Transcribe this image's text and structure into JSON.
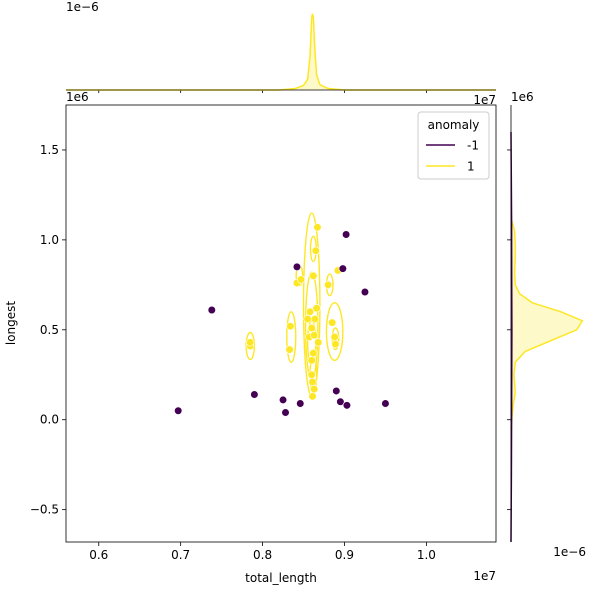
{
  "chart_data": {
    "type": "scatter",
    "subtype": "jointplot-kde",
    "xlabel": "total_length",
    "ylabel": "longest",
    "x_offset_label": "1e7",
    "y_offset_label": "1e6",
    "top_margin_offset_label": "1e−6",
    "right_margin_offset_label": "1e−6",
    "xlim": [
      5.6,
      10.85
    ],
    "ylim": [
      -0.68,
      1.75
    ],
    "x_unit_scale": 10000000,
    "y_unit_scale": 1000000,
    "x_ticks": [
      6.0,
      7.0,
      8.0,
      9.0,
      10.0
    ],
    "x_tick_labels": [
      "0.6",
      "0.7",
      "0.8",
      "0.9",
      "1.0"
    ],
    "y_ticks": [
      -0.5,
      0.0,
      0.5,
      1.0,
      1.5
    ],
    "y_tick_labels": [
      "−0.5",
      "0.0",
      "0.5",
      "1.0",
      "1.5"
    ],
    "grid": false,
    "legend": {
      "title": "anomaly",
      "placement": "top-right",
      "entries": [
        {
          "label": "-1",
          "color": "#440154"
        },
        {
          "label": "1",
          "color": "#fde725"
        }
      ]
    },
    "series": [
      {
        "name": "-1",
        "color": "#440154",
        "x": [
          6.97,
          7.38,
          7.9,
          8.25,
          8.28,
          8.42,
          8.46,
          8.9,
          8.95,
          8.98,
          9.02,
          9.03,
          9.25,
          9.5
        ],
        "y": [
          0.05,
          0.61,
          0.14,
          0.11,
          0.04,
          0.85,
          0.09,
          0.16,
          0.1,
          0.84,
          1.03,
          0.08,
          0.71,
          0.09
        ]
      },
      {
        "name": "1",
        "color": "#fde725",
        "x": [
          7.85,
          7.85,
          8.33,
          8.34,
          8.42,
          8.47,
          8.55,
          8.57,
          8.58,
          8.6,
          8.6,
          8.6,
          8.61,
          8.61,
          8.62,
          8.62,
          8.63,
          8.63,
          8.64,
          8.65,
          8.66,
          8.67,
          8.68,
          8.8,
          8.85,
          8.88,
          8.89,
          8.92
        ],
        "y": [
          0.41,
          0.43,
          0.39,
          0.52,
          0.76,
          0.78,
          0.56,
          0.46,
          0.6,
          0.25,
          0.33,
          0.51,
          0.13,
          0.21,
          0.37,
          0.8,
          0.17,
          0.47,
          0.56,
          0.94,
          0.62,
          1.07,
          0.43,
          0.75,
          0.54,
          0.46,
          0.42,
          0.83
        ]
      }
    ],
    "kde_contours": {
      "series": "1",
      "color": "#fde725",
      "regions": [
        {
          "cx": 7.85,
          "cy": 0.41,
          "rx": 0.05,
          "ry": 0.075
        },
        {
          "cx": 8.35,
          "cy": 0.46,
          "rx": 0.055,
          "ry": 0.14
        },
        {
          "cx": 8.45,
          "cy": 0.8,
          "rx": 0.04,
          "ry": 0.055
        },
        {
          "cx": 8.6,
          "cy": 0.64,
          "rx": 0.1,
          "ry": 0.51
        },
        {
          "cx": 8.6,
          "cy": 0.52,
          "rx": 0.075,
          "ry": 0.3
        },
        {
          "cx": 8.6,
          "cy": 0.43,
          "rx": 0.05,
          "ry": 0.12
        },
        {
          "cx": 8.62,
          "cy": 0.95,
          "rx": 0.035,
          "ry": 0.07
        },
        {
          "cx": 8.62,
          "cy": 0.25,
          "rx": 0.04,
          "ry": 0.1
        },
        {
          "cx": 8.82,
          "cy": 0.75,
          "rx": 0.04,
          "ry": 0.06
        },
        {
          "cx": 8.88,
          "cy": 0.49,
          "rx": 0.1,
          "ry": 0.16
        },
        {
          "cx": 8.89,
          "cy": 0.45,
          "rx": 0.04,
          "ry": 0.06
        }
      ]
    },
    "marginal_top": {
      "series": "1",
      "x": [
        5.6,
        8.2,
        8.4,
        8.5,
        8.55,
        8.58,
        8.6,
        8.61,
        8.62,
        8.64,
        8.66,
        8.7,
        8.8,
        9.0,
        10.85
      ],
      "density": [
        0.0,
        0.0,
        0.02,
        0.06,
        0.14,
        0.45,
        0.95,
        1.0,
        0.95,
        0.5,
        0.2,
        0.07,
        0.02,
        0.0,
        0.0
      ],
      "ylim": [
        0,
        1.05
      ]
    },
    "marginal_right": {
      "series": [
        {
          "name": "1",
          "color": "#fde725",
          "y": [
            -0.05,
            0.08,
            0.15,
            0.2,
            0.25,
            0.32,
            0.38,
            0.45,
            0.5,
            0.55,
            0.6,
            0.65,
            0.7,
            0.75,
            0.82,
            0.9,
            0.97,
            1.05,
            1.12
          ],
          "density": [
            0.0,
            0.03,
            0.06,
            0.05,
            0.04,
            0.06,
            0.2,
            0.62,
            0.92,
            1.0,
            0.7,
            0.3,
            0.12,
            0.06,
            0.05,
            0.06,
            0.06,
            0.05,
            0.0
          ]
        },
        {
          "name": "-1",
          "color": "#440154",
          "y": [
            -0.68,
            -0.3,
            0.0,
            0.2,
            0.5,
            0.8,
            1.1,
            1.35,
            1.6
          ],
          "density": [
            0.0,
            0.005,
            0.008,
            0.01,
            0.012,
            0.01,
            0.008,
            0.004,
            0.0
          ]
        }
      ],
      "xlim": [
        0,
        1.05
      ]
    }
  }
}
